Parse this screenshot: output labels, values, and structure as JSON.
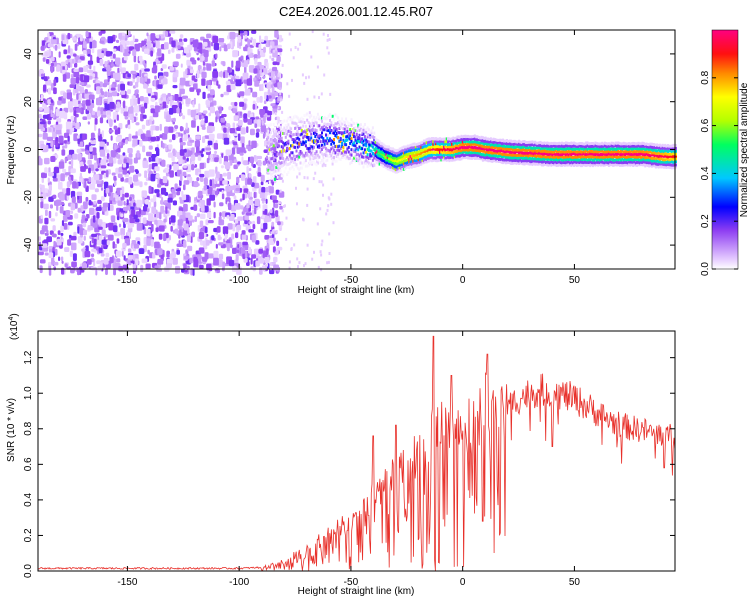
{
  "title": "C2E4.2026.001.12.45.R07",
  "chart_data": [
    {
      "type": "heatmap",
      "xlabel": "Height of straight line (km)",
      "ylabel": "Frequency (Hz)",
      "xlim": [
        -190,
        95
      ],
      "ylim": [
        -50,
        50
      ],
      "xticks": [
        -150,
        -100,
        -50,
        0,
        50
      ],
      "yticks": [
        -40,
        -20,
        0,
        20,
        40
      ],
      "noise_region_x": [
        -190,
        -88
      ],
      "signal_track": {
        "x": [
          -88,
          -80,
          -70,
          -60,
          -50,
          -40,
          -35,
          -30,
          -25,
          -20,
          -15,
          -10,
          -5,
          0,
          5,
          10,
          20,
          40,
          60,
          80,
          90,
          95
        ],
        "freq_hz": [
          -2,
          1,
          4,
          5,
          3,
          0,
          -3,
          -5,
          -3,
          -2,
          0,
          0,
          0,
          1,
          1,
          0,
          -1,
          -2,
          -2,
          -2,
          -3,
          -3
        ],
        "amplitude": [
          0.15,
          0.25,
          0.3,
          0.35,
          0.4,
          0.5,
          0.6,
          0.7,
          0.75,
          0.8,
          0.85,
          0.9,
          0.95,
          1.0,
          1.0,
          1.0,
          1.0,
          1.0,
          1.0,
          1.0,
          0.95,
          0.9
        ]
      },
      "colorbar": {
        "label": "Normalized spectral amplitude",
        "range": [
          0.0,
          1.0
        ],
        "ticks": [
          0.0,
          0.2,
          0.4,
          0.6,
          0.8
        ],
        "tick_labels": [
          "0.0",
          "0.2",
          "0.4",
          "0.6",
          "0.8"
        ]
      }
    },
    {
      "type": "line",
      "xlabel": "Height of straight line (km)",
      "ylabel": "SNR (10 * v/v)",
      "y_multiplier": "(x10",
      "y_multiplier_exp": "4",
      "y_multiplier_close": ")",
      "xlim": [
        -190,
        95
      ],
      "ylim": [
        0,
        1.35
      ],
      "xticks": [
        -150,
        -100,
        -50,
        0,
        50
      ],
      "yticks": [
        0.0,
        0.2,
        0.4,
        0.6,
        0.8,
        1.0,
        1.2
      ],
      "ytick_labels": [
        "0.0",
        "0.2",
        "0.4",
        "0.6",
        "0.8",
        "1.0",
        "1.2"
      ],
      "series": [
        {
          "name": "SNR",
          "color": "#e8302a",
          "envelope_x": [
            -190,
            -100,
            -90,
            -85,
            -80,
            -75,
            -70,
            -65,
            -60,
            -55,
            -50,
            -45,
            -40,
            -35,
            -30,
            -25,
            -20,
            -15,
            -13,
            -10,
            -5,
            0,
            5,
            10,
            15,
            20,
            25,
            30,
            35,
            40,
            45,
            50,
            55,
            60,
            65,
            70,
            75,
            80,
            85,
            90,
            95
          ],
          "envelope_y": [
            0.015,
            0.015,
            0.02,
            0.04,
            0.06,
            0.09,
            0.12,
            0.16,
            0.2,
            0.24,
            0.28,
            0.32,
            0.4,
            0.5,
            0.56,
            0.6,
            0.64,
            0.7,
            0.8,
            0.85,
            0.8,
            0.78,
            0.85,
            0.9,
            0.92,
            0.95,
            1.0,
            1.03,
            1.05,
            1.04,
            1.02,
            1.0,
            0.96,
            0.92,
            0.88,
            0.85,
            0.83,
            0.82,
            0.8,
            0.79,
            0.78
          ],
          "spikes": [
            {
              "x": -13,
              "y": 1.32
            },
            {
              "x": 11,
              "y": 1.22
            },
            {
              "x": 9,
              "y": 0.28
            },
            {
              "x": -40,
              "y": 0.76
            },
            {
              "x": -30,
              "y": 0.82
            },
            {
              "x": -5,
              "y": 1.1
            },
            {
              "x": 40,
              "y": 0.7
            },
            {
              "x": 90,
              "y": 0.58
            }
          ]
        }
      ]
    }
  ]
}
